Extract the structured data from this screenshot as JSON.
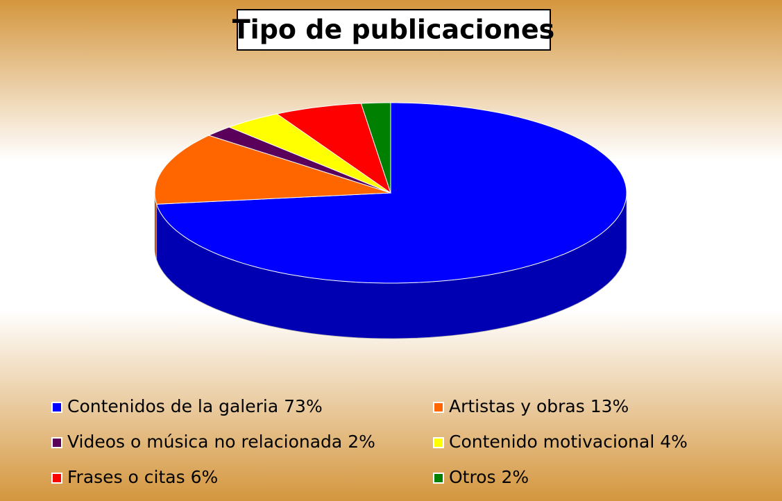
{
  "chart_data": {
    "type": "pie",
    "title": "Tipo de publicaciones",
    "categories": [
      "Contenidos de la galeria",
      "Artistas y obras",
      "Videos o música no relacionada",
      "Contenido motivacional",
      "Frases o citas",
      "Otros"
    ],
    "values": [
      73,
      13,
      2,
      4,
      6,
      2
    ],
    "value_labels": [
      "73%",
      "13%",
      "2%",
      "4%",
      "6%",
      "2%"
    ],
    "colors": [
      "#0000ff",
      "#ff6600",
      "#5a005a",
      "#ffff00",
      "#ff0000",
      "#008000"
    ]
  }
}
